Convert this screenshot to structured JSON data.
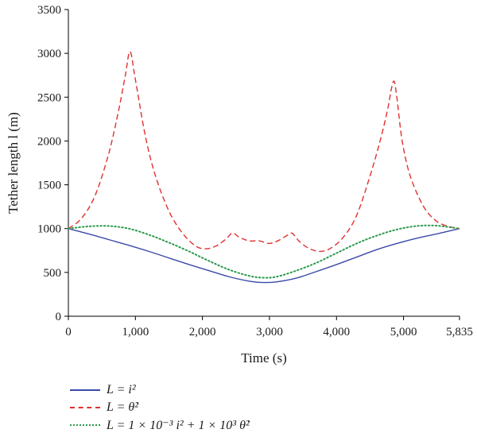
{
  "chart_data": {
    "type": "line",
    "title": "",
    "xlabel": "Time (s)",
    "ylabel": "Tether length l (m)",
    "xlim": [
      0,
      5835
    ],
    "ylim": [
      0,
      3500
    ],
    "x_ticks": [
      0,
      1000,
      2000,
      3000,
      4000,
      5000,
      5835
    ],
    "x_tick_labels": [
      "0",
      "1,000",
      "2,000",
      "3,000",
      "4,000",
      "5,000",
      "5,835"
    ],
    "y_ticks": [
      0,
      500,
      1000,
      1500,
      2000,
      2500,
      3000,
      3500
    ],
    "y_tick_labels": [
      "0",
      "500",
      "1000",
      "1500",
      "2000",
      "2500",
      "3000",
      "3500"
    ],
    "grid": false,
    "legend_position": "bottom",
    "series": [
      {
        "name": "L = i²",
        "color": "#3a4aa8",
        "dash": "solid",
        "x": [
          0,
          300,
          600,
          900,
          1200,
          1500,
          1800,
          2100,
          2400,
          2700,
          2900,
          3100,
          3400,
          3700,
          4000,
          4300,
          4600,
          4900,
          5200,
          5500,
          5835
        ],
        "y": [
          1000,
          940,
          875,
          810,
          740,
          665,
          590,
          520,
          450,
          400,
          385,
          392,
          435,
          510,
          590,
          675,
          760,
          830,
          890,
          940,
          1000
        ]
      },
      {
        "name": "L = θ̇²",
        "color": "#e03030",
        "dash": "dashed",
        "x": [
          0,
          200,
          400,
          600,
          750,
          850,
          920,
          1000,
          1150,
          1300,
          1500,
          1700,
          1900,
          2050,
          2200,
          2350,
          2450,
          2550,
          2700,
          2850,
          3000,
          3150,
          3300,
          3350,
          3450,
          3600,
          3750,
          3900,
          4100,
          4300,
          4500,
          4650,
          4760,
          4820,
          4860,
          4900,
          4980,
          5100,
          5300,
          5500,
          5700,
          5835
        ],
        "y": [
          1000,
          1120,
          1380,
          1850,
          2350,
          2750,
          3020,
          2700,
          2050,
          1600,
          1200,
          950,
          800,
          770,
          800,
          880,
          950,
          900,
          860,
          860,
          830,
          870,
          940,
          940,
          850,
          770,
          740,
          770,
          900,
          1150,
          1600,
          2000,
          2350,
          2600,
          2680,
          2500,
          2000,
          1600,
          1250,
          1080,
          1020,
          1000
        ]
      },
      {
        "name": "L = 1 × 10⁻³ i² + 1 × 10³ θ̇²",
        "color": "#2e9a4e",
        "dash": "dotted",
        "x": [
          0,
          300,
          600,
          900,
          1200,
          1500,
          1800,
          2100,
          2400,
          2700,
          2900,
          3100,
          3400,
          3700,
          4000,
          4300,
          4600,
          4900,
          5200,
          5450,
          5650,
          5835
        ],
        "y": [
          1000,
          1025,
          1030,
          1000,
          930,
          840,
          740,
          630,
          530,
          460,
          440,
          450,
          520,
          610,
          720,
          830,
          920,
          990,
          1030,
          1035,
          1020,
          1000
        ]
      }
    ]
  },
  "legend": {
    "items": [
      {
        "label": "L = i²",
        "color": "#3a4aa8"
      },
      {
        "label": "L = θ̇²",
        "color": "#e03030"
      },
      {
        "label": "L = 1 × 10⁻³ i² + 1 × 10³ θ̇²",
        "color": "#2e9a4e"
      }
    ]
  }
}
